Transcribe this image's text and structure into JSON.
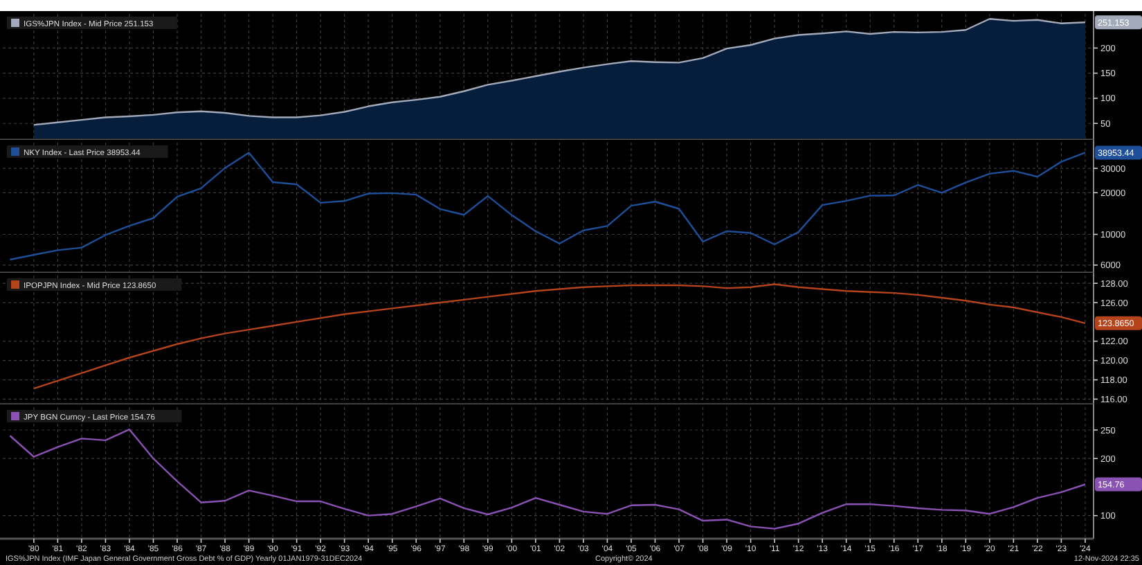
{
  "chart_data": [
    {
      "type": "area",
      "x": [
        1980,
        1981,
        1982,
        1983,
        1984,
        1985,
        1986,
        1987,
        1988,
        1989,
        1990,
        1991,
        1992,
        1993,
        1994,
        1995,
        1996,
        1997,
        1998,
        1999,
        2000,
        2001,
        2002,
        2003,
        2004,
        2005,
        2006,
        2007,
        2008,
        2009,
        2010,
        2011,
        2012,
        2013,
        2014,
        2015,
        2016,
        2017,
        2018,
        2019,
        2020,
        2021,
        2022,
        2023,
        2024
      ],
      "series": [
        {
          "name": "IGS%JPN Index - Mid Price 251.153",
          "color": "#a3abbb",
          "values": [
            47,
            52,
            57,
            62,
            64,
            67,
            72,
            74,
            71,
            65,
            62,
            62,
            66,
            73,
            84,
            92,
            97,
            103,
            114,
            127,
            135,
            144,
            153,
            161,
            168,
            174,
            172,
            171,
            180,
            199,
            206,
            219,
            226,
            229,
            233,
            228,
            232,
            231,
            232,
            236,
            258,
            254,
            256,
            249,
            251.153
          ]
        }
      ],
      "xlim": [
        1978.7,
        2024.35
      ],
      "xticks": [
        1980,
        1981,
        1982,
        1983,
        1984,
        1985,
        1986,
        1987,
        1988,
        1989,
        1990,
        1991,
        1992,
        1993,
        1994,
        1995,
        1996,
        1997,
        1998,
        1999,
        2000,
        2001,
        2002,
        2003,
        2004,
        2005,
        2006,
        2007,
        2008,
        2009,
        2010,
        2011,
        2012,
        2013,
        2014,
        2015,
        2016,
        2017,
        2018,
        2019,
        2020,
        2021,
        2022,
        2023,
        2024
      ],
      "ylim": [
        20,
        268
      ],
      "yticks": [
        50,
        100,
        150,
        200
      ],
      "grid": true,
      "legend": "top left",
      "tick_labels": "y",
      "annotations": [
        "251.153"
      ]
    },
    {
      "type": "line",
      "x": [
        1979,
        1980,
        1981,
        1982,
        1983,
        1984,
        1985,
        1986,
        1987,
        1988,
        1989,
        1990,
        1991,
        1992,
        1993,
        1994,
        1995,
        1996,
        1997,
        1998,
        1999,
        2000,
        2001,
        2002,
        2003,
        2004,
        2005,
        2006,
        2007,
        2008,
        2009,
        2010,
        2011,
        2012,
        2013,
        2014,
        2015,
        2016,
        2017,
        2018,
        2019,
        2020,
        2021,
        2022,
        2023,
        2024
      ],
      "series": [
        {
          "name": "NKY Index - Last Price 38953.44",
          "color": "#1f4f99",
          "values": [
            6570,
            7120,
            7680,
            8020,
            9890,
            11540,
            13110,
            18700,
            21560,
            30160,
            38920,
            23850,
            22980,
            16920,
            17420,
            19720,
            19870,
            19360,
            15260,
            13840,
            18930,
            13790,
            10540,
            8580,
            10680,
            11490,
            16110,
            17230,
            15310,
            8860,
            10550,
            10230,
            8460,
            10400,
            16290,
            17450,
            19030,
            19110,
            22760,
            20010,
            23660,
            27440,
            28790,
            26090,
            33460,
            38953.44
          ]
        }
      ],
      "xlim": [
        1978.7,
        2024.35
      ],
      "xticks": [
        1980,
        1981,
        1982,
        1983,
        1984,
        1985,
        1986,
        1987,
        1988,
        1989,
        1990,
        1991,
        1992,
        1993,
        1994,
        1995,
        1996,
        1997,
        1998,
        1999,
        2000,
        2001,
        2002,
        2003,
        2004,
        2005,
        2006,
        2007,
        2008,
        2009,
        2010,
        2011,
        2012,
        2013,
        2014,
        2015,
        2016,
        2017,
        2018,
        2019,
        2020,
        2021,
        2022,
        2023,
        2024
      ],
      "ylim": [
        5400,
        46000
      ],
      "yticks": [
        6000,
        10000,
        20000,
        30000
      ],
      "log": true,
      "grid": true,
      "legend": "top left",
      "tick_labels": "y",
      "annotations": [
        "38953.44"
      ]
    },
    {
      "type": "line",
      "x": [
        1980,
        1981,
        1982,
        1983,
        1984,
        1985,
        1986,
        1987,
        1988,
        1989,
        1990,
        1991,
        1992,
        1993,
        1994,
        1995,
        1996,
        1997,
        1998,
        1999,
        2000,
        2001,
        2002,
        2003,
        2004,
        2005,
        2006,
        2007,
        2008,
        2009,
        2010,
        2011,
        2012,
        2013,
        2014,
        2015,
        2016,
        2017,
        2018,
        2019,
        2020,
        2021,
        2022,
        2023,
        2024
      ],
      "series": [
        {
          "name": "IPOPJPN Index - Mid Price 123.8650",
          "color": "#b5431c",
          "values": [
            117.1,
            117.9,
            118.7,
            119.5,
            120.3,
            121.0,
            121.7,
            122.3,
            122.8,
            123.2,
            123.6,
            124.0,
            124.4,
            124.8,
            125.1,
            125.4,
            125.7,
            126.0,
            126.3,
            126.6,
            126.9,
            127.2,
            127.4,
            127.6,
            127.7,
            127.8,
            127.8,
            127.8,
            127.7,
            127.5,
            127.6,
            127.9,
            127.6,
            127.4,
            127.2,
            127.1,
            127.0,
            126.8,
            126.5,
            126.2,
            125.8,
            125.5,
            125.0,
            124.5,
            123.865
          ]
        }
      ],
      "xlim": [
        1978.7,
        2024.35
      ],
      "xticks": [
        1980,
        1981,
        1982,
        1983,
        1984,
        1985,
        1986,
        1987,
        1988,
        1989,
        1990,
        1991,
        1992,
        1993,
        1994,
        1995,
        1996,
        1997,
        1998,
        1999,
        2000,
        2001,
        2002,
        2003,
        2004,
        2005,
        2006,
        2007,
        2008,
        2009,
        2010,
        2011,
        2012,
        2013,
        2014,
        2015,
        2016,
        2017,
        2018,
        2019,
        2020,
        2021,
        2022,
        2023,
        2024
      ],
      "ylim": [
        115.6,
        128.8
      ],
      "yticks": [
        {
          "value": 116,
          "label": "116.00"
        },
        {
          "value": 118,
          "label": "118.00"
        },
        {
          "value": 120,
          "label": "120.00"
        },
        {
          "value": 122,
          "label": "122.00"
        },
        {
          "value": 126,
          "label": "126.00"
        },
        {
          "value": 128,
          "label": "128.00"
        }
      ],
      "grid": true,
      "legend": "top left",
      "tick_labels": "y",
      "annotations": [
        "123.8650"
      ]
    },
    {
      "type": "line",
      "x": [
        1979,
        1980,
        1981,
        1982,
        1983,
        1984,
        1985,
        1986,
        1987,
        1988,
        1989,
        1990,
        1991,
        1992,
        1993,
        1994,
        1995,
        1996,
        1997,
        1998,
        1999,
        2000,
        2001,
        2002,
        2003,
        2004,
        2005,
        2006,
        2007,
        2008,
        2009,
        2010,
        2011,
        2012,
        2013,
        2014,
        2015,
        2016,
        2017,
        2018,
        2019,
        2020,
        2021,
        2022,
        2023,
        2024
      ],
      "series": [
        {
          "name": "JPY BGN Curncy - Last Price 154.76",
          "color": "#8a52b3",
          "values": [
            240,
            203,
            220,
            235,
            232,
            251,
            200,
            160,
            123,
            126,
            144,
            135,
            125,
            125,
            112,
            100,
            103,
            116,
            130,
            113,
            102,
            114,
            131,
            119,
            107,
            103,
            118,
            119,
            111,
            91,
            93,
            81,
            77,
            86,
            105,
            120,
            120,
            117,
            113,
            110,
            109,
            103,
            115,
            131,
            141,
            154.76
          ]
        }
      ],
      "xlim": [
        1978.7,
        2024.35
      ],
      "xticks": [
        {
          "value": 1980,
          "label": "'80"
        },
        {
          "value": 1981,
          "label": "'81"
        },
        {
          "value": 1982,
          "label": "'82"
        },
        {
          "value": 1983,
          "label": "'83"
        },
        {
          "value": 1984,
          "label": "'84"
        },
        {
          "value": 1985,
          "label": "'85"
        },
        {
          "value": 1986,
          "label": "'86"
        },
        {
          "value": 1987,
          "label": "'87"
        },
        {
          "value": 1988,
          "label": "'88"
        },
        {
          "value": 1989,
          "label": "'89"
        },
        {
          "value": 1990,
          "label": "'90"
        },
        {
          "value": 1991,
          "label": "'91"
        },
        {
          "value": 1992,
          "label": "'92"
        },
        {
          "value": 1993,
          "label": "'93"
        },
        {
          "value": 1994,
          "label": "'94"
        },
        {
          "value": 1995,
          "label": "'95"
        },
        {
          "value": 1996,
          "label": "'96"
        },
        {
          "value": 1997,
          "label": "'97"
        },
        {
          "value": 1998,
          "label": "'98"
        },
        {
          "value": 1999,
          "label": "'99"
        },
        {
          "value": 2000,
          "label": "'00"
        },
        {
          "value": 2001,
          "label": "'01"
        },
        {
          "value": 2002,
          "label": "'02"
        },
        {
          "value": 2003,
          "label": "'03"
        },
        {
          "value": 2004,
          "label": "'04"
        },
        {
          "value": 2005,
          "label": "'05"
        },
        {
          "value": 2006,
          "label": "'06"
        },
        {
          "value": 2007,
          "label": "'07"
        },
        {
          "value": 2008,
          "label": "'08"
        },
        {
          "value": 2009,
          "label": "'09"
        },
        {
          "value": 2010,
          "label": "'10"
        },
        {
          "value": 2011,
          "label": "'11"
        },
        {
          "value": 2012,
          "label": "'12"
        },
        {
          "value": 2013,
          "label": "'13"
        },
        {
          "value": 2014,
          "label": "'14"
        },
        {
          "value": 2015,
          "label": "'15"
        },
        {
          "value": 2016,
          "label": "'16"
        },
        {
          "value": 2017,
          "label": "'17"
        },
        {
          "value": 2018,
          "label": "'18"
        },
        {
          "value": 2019,
          "label": "'19"
        },
        {
          "value": 2020,
          "label": "'20"
        },
        {
          "value": 2021,
          "label": "'21"
        },
        {
          "value": 2022,
          "label": "'22"
        },
        {
          "value": 2023,
          "label": "'23"
        },
        {
          "value": 2024,
          "label": "'24"
        }
      ],
      "ylim": [
        62,
        290
      ],
      "yticks": [
        100,
        200,
        250
      ],
      "grid": true,
      "legend": "top left",
      "annotations": [
        "154.76",
        "IGS%JPN Index (IMF Japan General Government Gross Debt % of GDP)  Yearly 01JAN1979-31DEC2024",
        "Copyright© 2024",
        "12-Nov-2024 22:35"
      ]
    }
  ]
}
